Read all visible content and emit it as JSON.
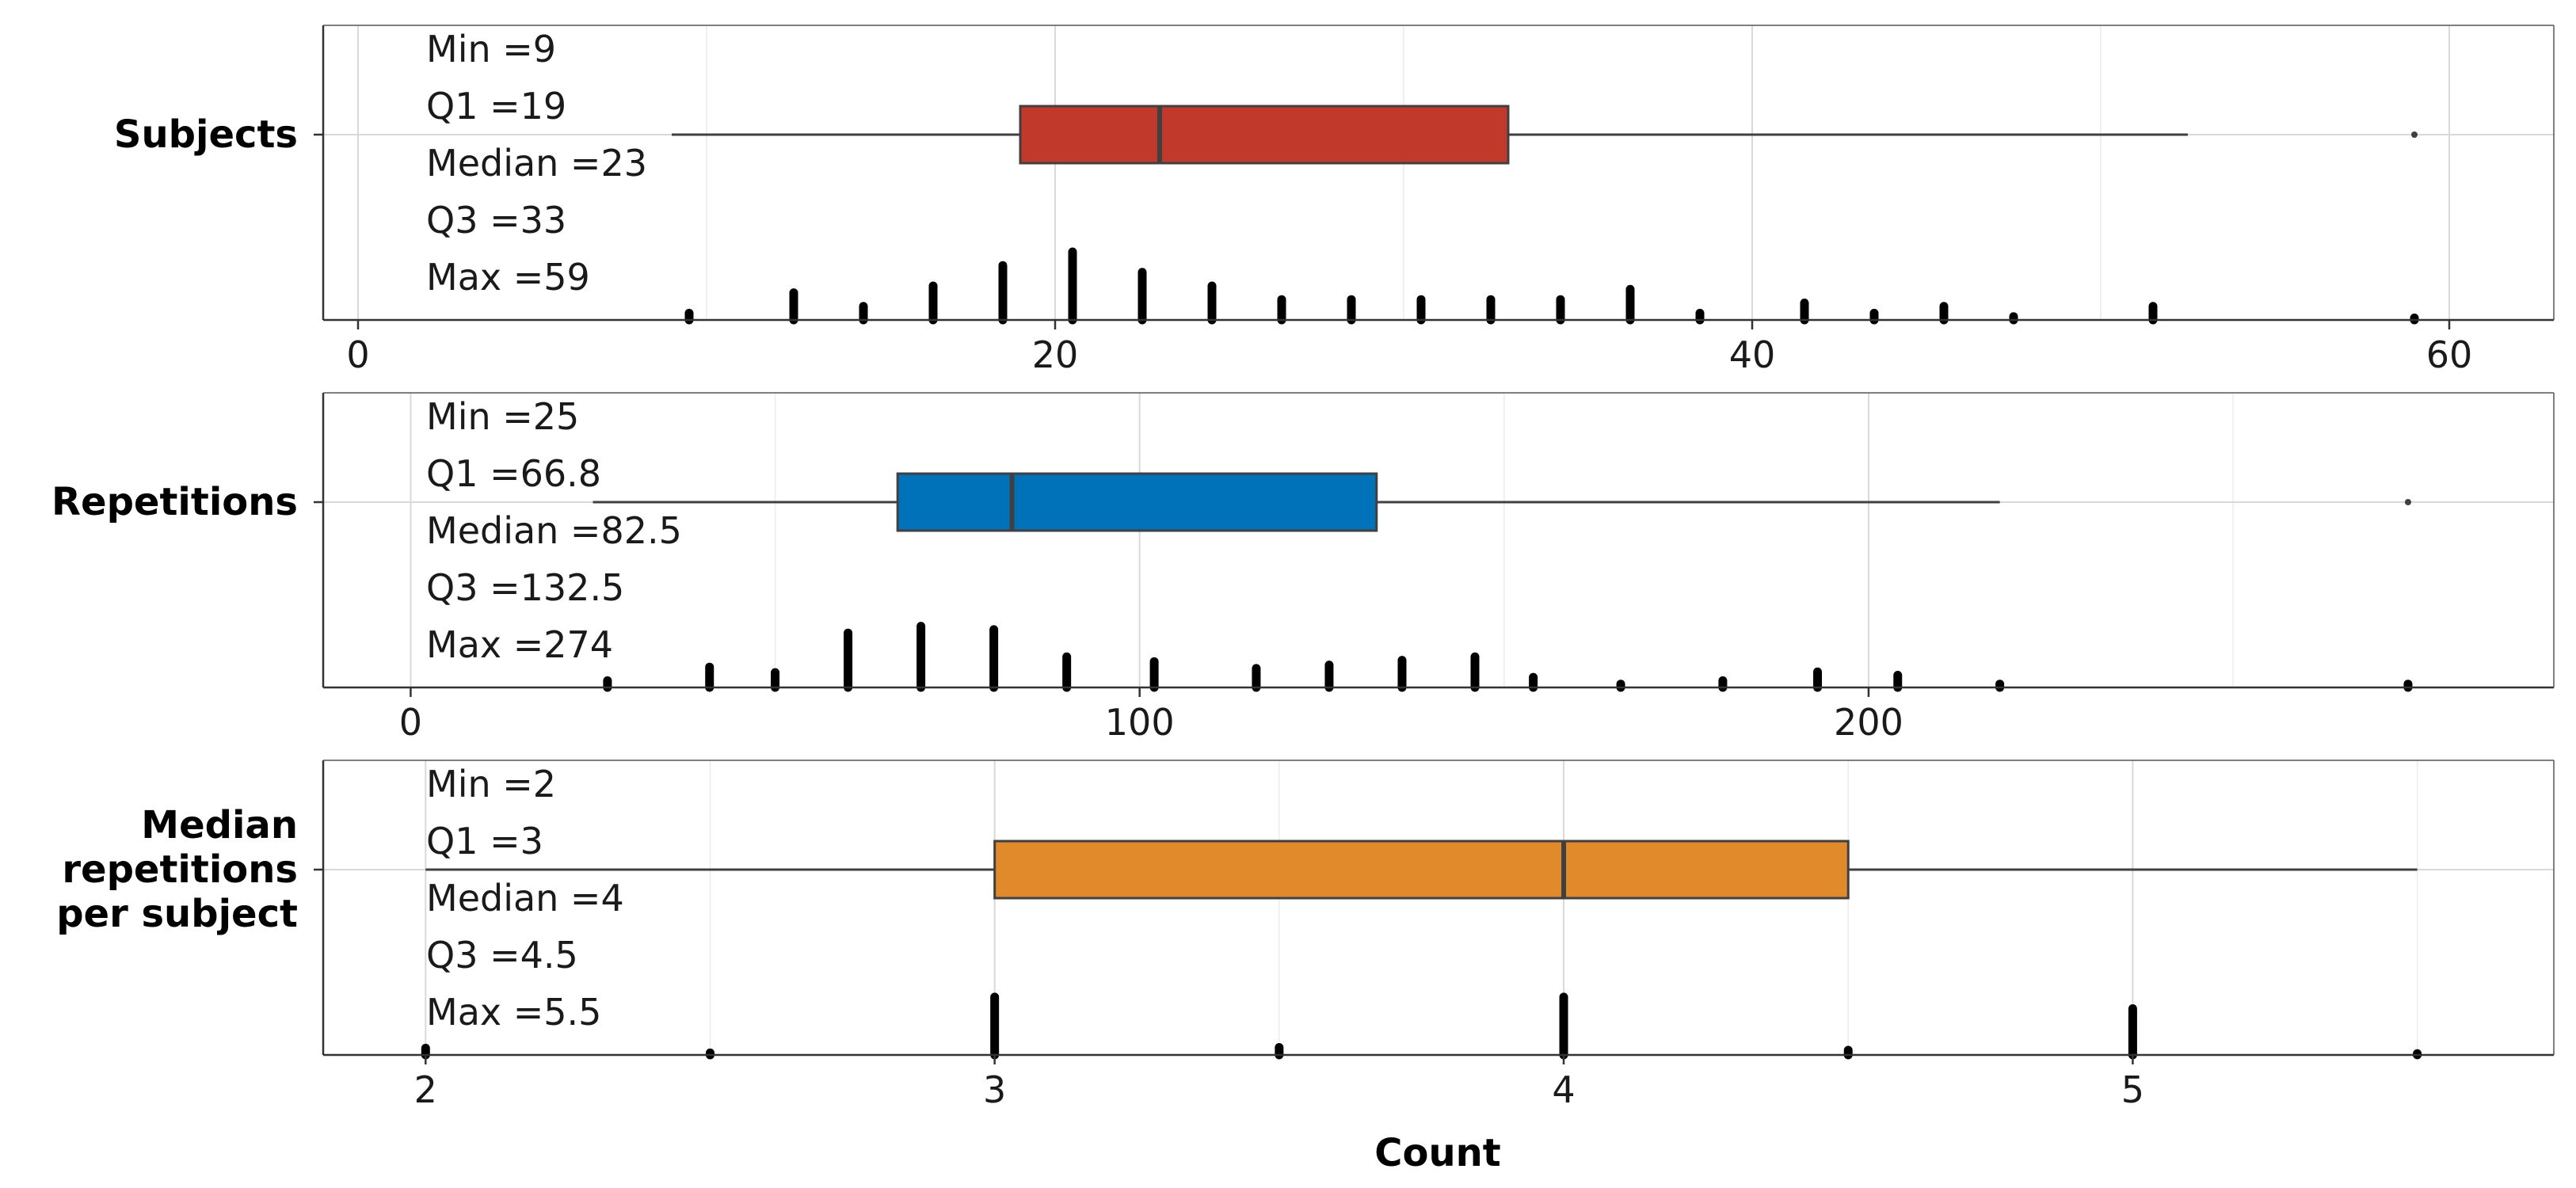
{
  "chart_data": {
    "type": "box-histogram",
    "xlabel": "Count",
    "panels": [
      {
        "label_lines": [
          "Subjects"
        ],
        "color": "#C0392B",
        "xlim": [
          -1,
          63
        ],
        "ticks": [
          0,
          20,
          40,
          60
        ],
        "box": {
          "whisker_low": 9,
          "q1": 19,
          "median": 23,
          "q3": 33,
          "whisker_high": 52.5
        },
        "outliers": [
          59
        ],
        "stats": [
          {
            "label": "Min",
            "value": "9"
          },
          {
            "label": "Q1",
            "value": "19"
          },
          {
            "label": "Median",
            "value": "23"
          },
          {
            "label": "Q3",
            "value": "33"
          },
          {
            "label": "Max",
            "value": "59"
          }
        ],
        "hist": [
          [
            9.5,
            1
          ],
          [
            12.5,
            4
          ],
          [
            14.5,
            2
          ],
          [
            16.5,
            5
          ],
          [
            18.5,
            8
          ],
          [
            20.5,
            10
          ],
          [
            22.5,
            7
          ],
          [
            24.5,
            5
          ],
          [
            26.5,
            3
          ],
          [
            28.5,
            3
          ],
          [
            30.5,
            3
          ],
          [
            32.5,
            3
          ],
          [
            34.5,
            3
          ],
          [
            36.5,
            4.5
          ],
          [
            38.5,
            1
          ],
          [
            41.5,
            2.5
          ],
          [
            43.5,
            1
          ],
          [
            45.5,
            2
          ],
          [
            47.5,
            0.5
          ],
          [
            51.5,
            2
          ],
          [
            59,
            0.3
          ]
        ]
      },
      {
        "label_lines": [
          "Repetitions"
        ],
        "color": "#0072B9",
        "xlim": [
          -12,
          294
        ],
        "ticks": [
          0,
          100,
          200
        ],
        "box": {
          "whisker_low": 25,
          "q1": 66.8,
          "median": 82.5,
          "q3": 132.5,
          "whisker_high": 218
        },
        "outliers": [
          274
        ],
        "stats": [
          {
            "label": "Min",
            "value": "25"
          },
          {
            "label": "Q1",
            "value": "66.8"
          },
          {
            "label": "Median",
            "value": "82.5"
          },
          {
            "label": "Q3",
            "value": "132.5"
          },
          {
            "label": "Max",
            "value": "274"
          }
        ],
        "hist": [
          [
            27,
            1
          ],
          [
            41,
            3
          ],
          [
            50,
            2.2
          ],
          [
            60,
            8
          ],
          [
            70,
            9
          ],
          [
            80,
            8.5
          ],
          [
            90,
            4.5
          ],
          [
            102,
            3.8
          ],
          [
            116,
            2.8
          ],
          [
            126,
            3.3
          ],
          [
            136,
            4
          ],
          [
            146,
            4.5
          ],
          [
            154,
            1.5
          ],
          [
            166,
            0.5
          ],
          [
            180,
            1
          ],
          [
            193,
            2.3
          ],
          [
            204,
            1.8
          ],
          [
            218,
            0.5
          ],
          [
            274,
            0.5
          ]
        ]
      },
      {
        "label_lines": [
          "Median",
          "repetitions",
          "per subject"
        ],
        "color": "#E08A2B",
        "xlim": [
          1.82,
          5.74
        ],
        "ticks": [
          2,
          3,
          4,
          5
        ],
        "box": {
          "whisker_low": 2,
          "q1": 3,
          "median": 4,
          "q3": 4.5,
          "whisker_high": 5.5
        },
        "outliers": [],
        "stats": [
          {
            "label": "Min",
            "value": "2"
          },
          {
            "label": "Q1",
            "value": "3"
          },
          {
            "label": "Median",
            "value": "4"
          },
          {
            "label": "Q3",
            "value": "4.5"
          },
          {
            "label": "Max",
            "value": "5.5"
          }
        ],
        "hist": [
          [
            2,
            1
          ],
          [
            2.5,
            0.3
          ],
          [
            3,
            8.5
          ],
          [
            3.5,
            1.1
          ],
          [
            4,
            8.5
          ],
          [
            4.5,
            0.7
          ],
          [
            5,
            6.8
          ],
          [
            5.5,
            0.2
          ]
        ]
      }
    ]
  }
}
